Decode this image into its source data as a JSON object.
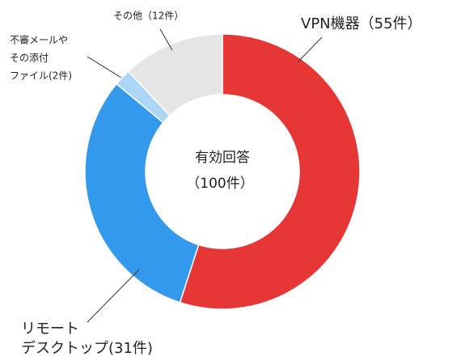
{
  "chart_data": {
    "type": "donut",
    "values": [
      55,
      31,
      2,
      12
    ],
    "value_labels": [
      [
        "VPN機器（55件）"
      ],
      [
        "リモート",
        "デスクトップ(31件)"
      ],
      [
        "不審メールや",
        "その添付",
        "ファイル(2件)"
      ],
      [
        "その他（12件）"
      ]
    ],
    "colors": [
      "#e63636",
      "#3399ec",
      "#acd6f7",
      "#e5e5e5"
    ],
    "center_label": [
      "有効回答",
      "（100件）"
    ]
  }
}
